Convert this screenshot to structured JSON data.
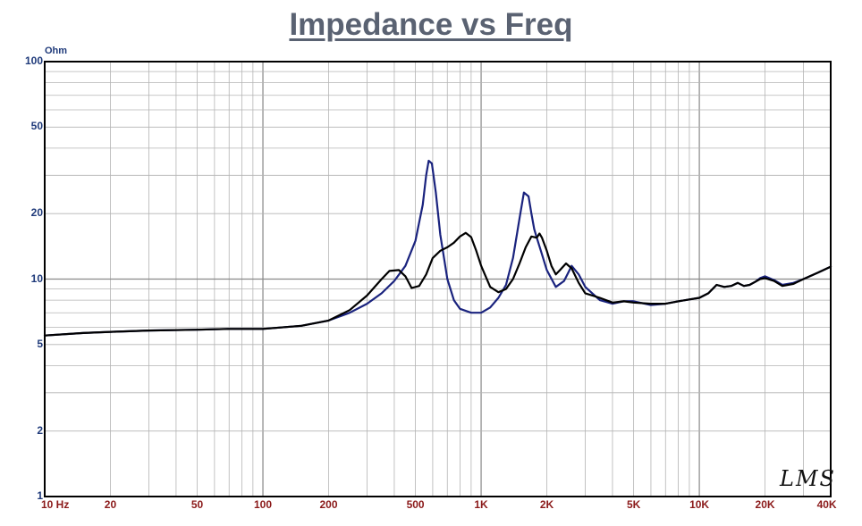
{
  "chart_data": {
    "type": "line",
    "title": "Impedance vs Freq",
    "ylabel": "Ohm",
    "x_scale": "log",
    "y_scale": "log",
    "xlim": [
      10,
      40000
    ],
    "ylim": [
      1,
      100
    ],
    "x_ticks": [
      {
        "value": 10,
        "label": "10  Hz"
      },
      {
        "value": 20,
        "label": "20"
      },
      {
        "value": 50,
        "label": "50"
      },
      {
        "value": 100,
        "label": "100"
      },
      {
        "value": 200,
        "label": "200"
      },
      {
        "value": 500,
        "label": "500"
      },
      {
        "value": 1000,
        "label": "1K"
      },
      {
        "value": 2000,
        "label": "2K"
      },
      {
        "value": 5000,
        "label": "5K"
      },
      {
        "value": 10000,
        "label": "10K"
      },
      {
        "value": 20000,
        "label": "20K"
      },
      {
        "value": 40000,
        "label": "40K"
      }
    ],
    "y_ticks": [
      {
        "value": 100,
        "label": "100"
      },
      {
        "value": 50,
        "label": "50"
      },
      {
        "value": 20,
        "label": "20"
      },
      {
        "value": 10,
        "label": "10"
      },
      {
        "value": 5,
        "label": "5"
      },
      {
        "value": 2,
        "label": "2"
      },
      {
        "value": 1,
        "label": "1"
      }
    ],
    "grid": true,
    "series": [
      {
        "color": "#1a237e",
        "points": [
          [
            10,
            5.5
          ],
          [
            15,
            5.65
          ],
          [
            20,
            5.72
          ],
          [
            30,
            5.8
          ],
          [
            50,
            5.85
          ],
          [
            70,
            5.9
          ],
          [
            100,
            5.9
          ],
          [
            150,
            6.1
          ],
          [
            200,
            6.45
          ],
          [
            250,
            7.0
          ],
          [
            300,
            7.7
          ],
          [
            350,
            8.6
          ],
          [
            400,
            9.8
          ],
          [
            450,
            11.5
          ],
          [
            500,
            15
          ],
          [
            540,
            22
          ],
          [
            560,
            30
          ],
          [
            575,
            35
          ],
          [
            595,
            34
          ],
          [
            620,
            25
          ],
          [
            650,
            16
          ],
          [
            700,
            10
          ],
          [
            750,
            8.0
          ],
          [
            800,
            7.3
          ],
          [
            900,
            7.0
          ],
          [
            1000,
            7.0
          ],
          [
            1100,
            7.4
          ],
          [
            1200,
            8.2
          ],
          [
            1300,
            9.4
          ],
          [
            1400,
            12.5
          ],
          [
            1500,
            19
          ],
          [
            1570,
            25
          ],
          [
            1650,
            24
          ],
          [
            1700,
            20
          ],
          [
            1750,
            17
          ],
          [
            1800,
            15.5
          ],
          [
            1900,
            13
          ],
          [
            2000,
            11
          ],
          [
            2200,
            9.2
          ],
          [
            2400,
            9.8
          ],
          [
            2600,
            11.5
          ],
          [
            2800,
            10.5
          ],
          [
            3000,
            9.2
          ],
          [
            3500,
            8.0
          ],
          [
            4000,
            7.7
          ],
          [
            4500,
            7.9
          ],
          [
            5000,
            7.9
          ],
          [
            6000,
            7.6
          ],
          [
            7000,
            7.7
          ],
          [
            8000,
            7.9
          ],
          [
            10000,
            8.2
          ],
          [
            11000,
            8.6
          ],
          [
            12000,
            9.4
          ],
          [
            13000,
            9.2
          ],
          [
            14000,
            9.3
          ],
          [
            15000,
            9.6
          ],
          [
            16000,
            9.3
          ],
          [
            17000,
            9.4
          ],
          [
            18000,
            9.7
          ],
          [
            19000,
            10.1
          ],
          [
            20000,
            10.3
          ],
          [
            22000,
            9.9
          ],
          [
            24000,
            9.4
          ],
          [
            27000,
            9.6
          ],
          [
            30000,
            10.0
          ],
          [
            35000,
            10.7
          ],
          [
            40000,
            11.4
          ]
        ]
      },
      {
        "color": "#000000",
        "points": [
          [
            10,
            5.5
          ],
          [
            15,
            5.65
          ],
          [
            20,
            5.72
          ],
          [
            30,
            5.8
          ],
          [
            50,
            5.85
          ],
          [
            70,
            5.9
          ],
          [
            100,
            5.9
          ],
          [
            150,
            6.1
          ],
          [
            200,
            6.45
          ],
          [
            250,
            7.2
          ],
          [
            300,
            8.4
          ],
          [
            350,
            10.0
          ],
          [
            380,
            10.9
          ],
          [
            420,
            11.0
          ],
          [
            450,
            10.3
          ],
          [
            480,
            9.1
          ],
          [
            520,
            9.3
          ],
          [
            560,
            10.5
          ],
          [
            600,
            12.5
          ],
          [
            650,
            13.5
          ],
          [
            700,
            14.0
          ],
          [
            750,
            14.7
          ],
          [
            800,
            15.7
          ],
          [
            850,
            16.3
          ],
          [
            900,
            15.6
          ],
          [
            950,
            13.5
          ],
          [
            1000,
            11.5
          ],
          [
            1100,
            9.2
          ],
          [
            1200,
            8.7
          ],
          [
            1300,
            9.0
          ],
          [
            1400,
            10.0
          ],
          [
            1500,
            11.8
          ],
          [
            1600,
            14
          ],
          [
            1700,
            15.7
          ],
          [
            1800,
            15.5
          ],
          [
            1850,
            16.2
          ],
          [
            1900,
            15.5
          ],
          [
            2000,
            13.5
          ],
          [
            2100,
            11.5
          ],
          [
            2200,
            10.5
          ],
          [
            2300,
            11.0
          ],
          [
            2450,
            11.8
          ],
          [
            2600,
            11.2
          ],
          [
            2800,
            9.6
          ],
          [
            3000,
            8.6
          ],
          [
            3500,
            8.2
          ],
          [
            4000,
            7.8
          ],
          [
            4500,
            7.9
          ],
          [
            5000,
            7.8
          ],
          [
            6000,
            7.7
          ],
          [
            7000,
            7.7
          ],
          [
            8000,
            7.9
          ],
          [
            10000,
            8.2
          ],
          [
            11000,
            8.6
          ],
          [
            12000,
            9.4
          ],
          [
            13000,
            9.2
          ],
          [
            14000,
            9.3
          ],
          [
            15000,
            9.6
          ],
          [
            16000,
            9.3
          ],
          [
            17000,
            9.4
          ],
          [
            18000,
            9.7
          ],
          [
            19000,
            10.0
          ],
          [
            20000,
            10.1
          ],
          [
            22000,
            9.8
          ],
          [
            24000,
            9.3
          ],
          [
            27000,
            9.5
          ],
          [
            30000,
            10.0
          ],
          [
            35000,
            10.7
          ],
          [
            40000,
            11.4
          ]
        ]
      }
    ]
  },
  "watermark": "LMS"
}
